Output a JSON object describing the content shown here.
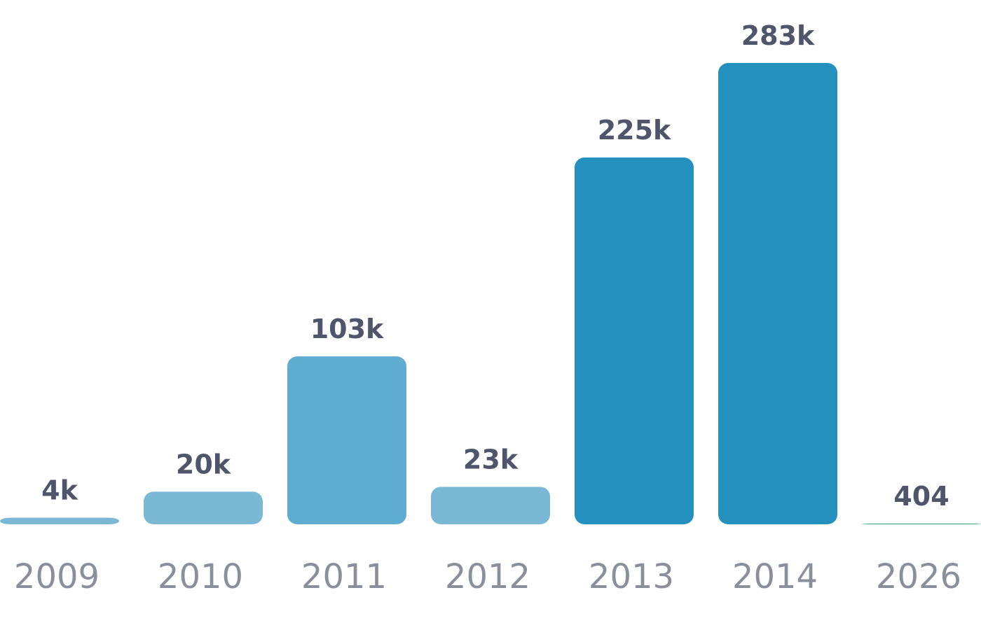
{
  "chart_data": {
    "type": "bar",
    "categories": [
      "2009",
      "2010",
      "2011",
      "2012",
      "2013",
      "2014",
      "2026"
    ],
    "values": [
      4000,
      20000,
      103000,
      23000,
      225000,
      283000,
      404
    ],
    "value_labels": [
      "4k",
      "20k",
      "103k",
      "23k",
      "225k",
      "283k",
      "404"
    ],
    "colors": [
      "#7ab8d6",
      "#7ab8d6",
      "#5eacd0",
      "#7ab8d6",
      "#2490be",
      "#2490be",
      "#2e9e6b"
    ]
  }
}
